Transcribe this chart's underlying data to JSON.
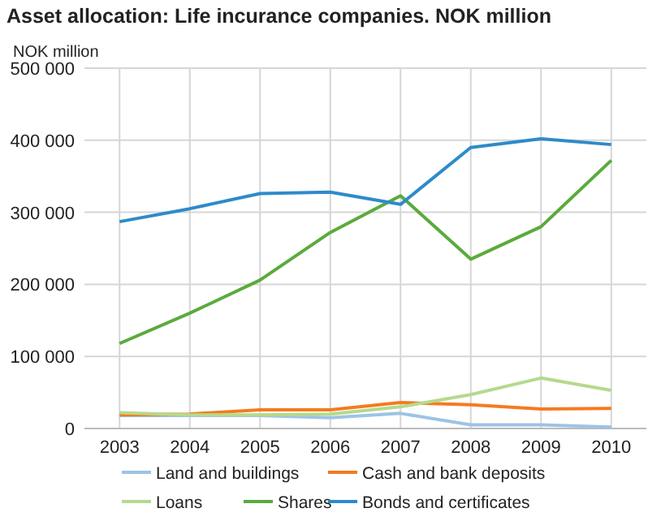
{
  "chart_data": {
    "type": "line",
    "title": "Asset allocation: Life incurance companies. NOK million",
    "ylabel": "NOK million",
    "categories": [
      "2003",
      "2004",
      "2005",
      "2006",
      "2007",
      "2008",
      "2009",
      "2010"
    ],
    "series": [
      {
        "name": "Land and buildings",
        "color": "#9dc3e6",
        "values": [
          18000,
          18000,
          18000,
          15000,
          21000,
          5000,
          5000,
          2000
        ]
      },
      {
        "name": "Cash and bank deposits",
        "color": "#f47b20",
        "values": [
          19000,
          20000,
          26000,
          26000,
          36000,
          33000,
          27000,
          28000
        ]
      },
      {
        "name": "Loans",
        "color": "#b4da8c",
        "values": [
          22000,
          19000,
          19000,
          20000,
          30000,
          47000,
          70000,
          53000
        ]
      },
      {
        "name": "Shares",
        "color": "#5aab3c",
        "values": [
          118000,
          160000,
          206000,
          272000,
          323000,
          235000,
          280000,
          372000
        ]
      },
      {
        "name": "Bonds and certificates",
        "color": "#2e8bc9",
        "values": [
          287000,
          305000,
          326000,
          328000,
          311000,
          390000,
          402000,
          394000
        ]
      }
    ],
    "ylim": [
      0,
      500000
    ],
    "yticks": [
      {
        "value": 0,
        "label": "0"
      },
      {
        "value": 100000,
        "label": "100 000"
      },
      {
        "value": 200000,
        "label": "200 000"
      },
      {
        "value": 300000,
        "label": "300 000"
      },
      {
        "value": 400000,
        "label": "400 000"
      },
      {
        "value": 500000,
        "label": "500 000"
      }
    ],
    "grid": true,
    "legend": "bottom",
    "line_style": "solid",
    "marker": "none"
  }
}
